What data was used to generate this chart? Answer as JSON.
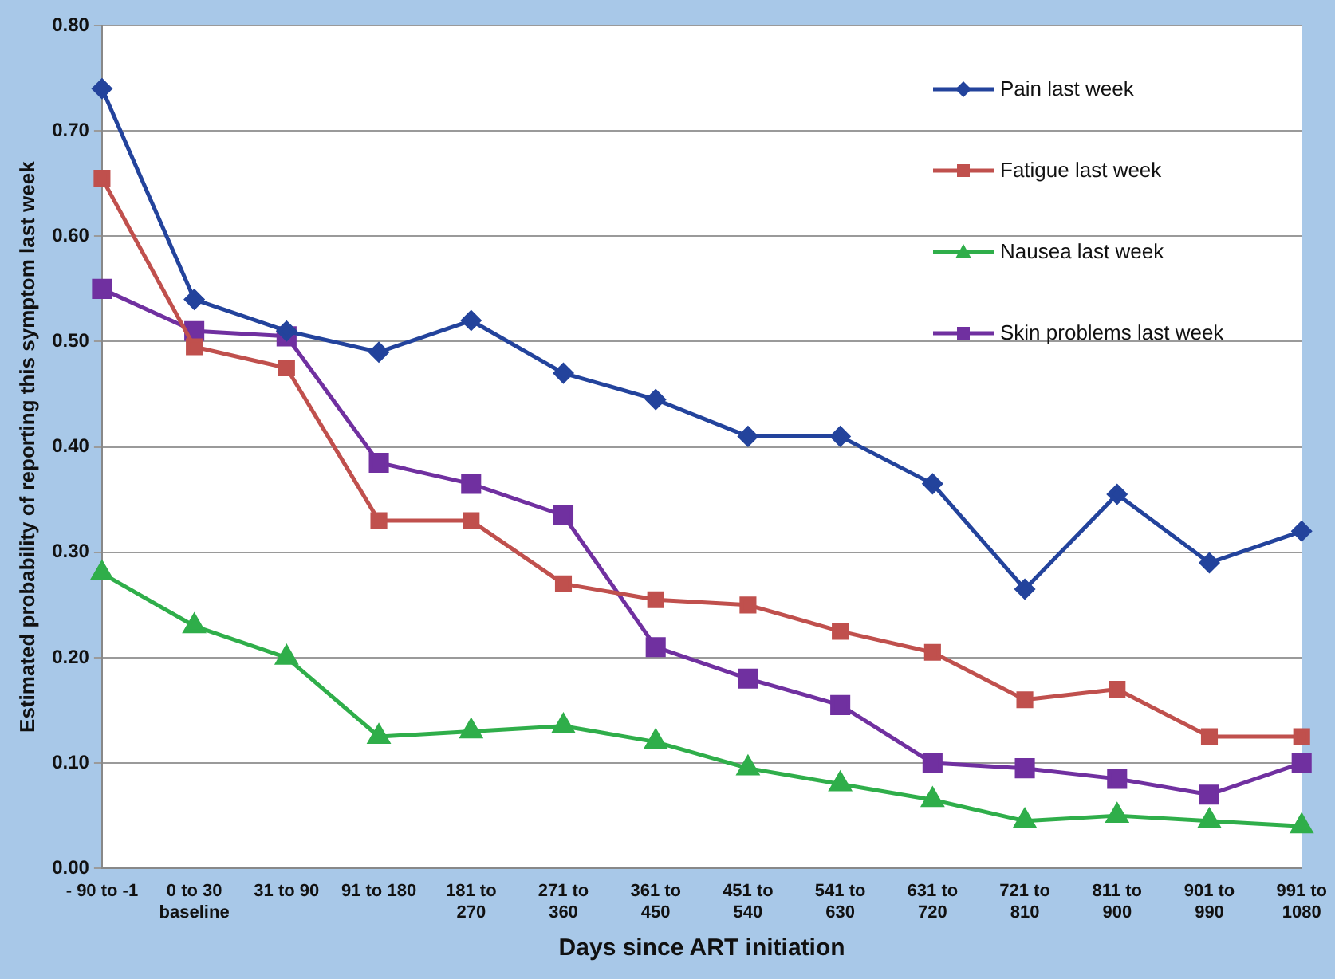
{
  "chart_data": {
    "type": "line",
    "xlabel": "Days since ART initiation",
    "ylabel": "Estimated probability of reporting this symptom last week",
    "categories": [
      "- 90 to -1",
      "0 to 30\nbaseline",
      "31 to 90",
      "91 to 180",
      "181 to\n270",
      "271 to\n360",
      "361 to\n450",
      "451 to\n540",
      "541 to\n630",
      "631 to\n720",
      "721 to\n810",
      "811 to\n900",
      "901 to\n990",
      "991 to\n1080"
    ],
    "series": [
      {
        "name": "Pain last week",
        "color": "#23439c",
        "marker": "diamond",
        "values": [
          0.74,
          0.54,
          0.51,
          0.49,
          0.52,
          0.47,
          0.445,
          0.41,
          0.41,
          0.365,
          0.265,
          0.355,
          0.29,
          0.32
        ]
      },
      {
        "name": "Fatigue last week",
        "color": "#c0504d",
        "marker": "square",
        "values": [
          0.655,
          0.495,
          0.475,
          0.33,
          0.33,
          0.27,
          0.255,
          0.25,
          0.225,
          0.205,
          0.16,
          0.17,
          0.125,
          0.125
        ]
      },
      {
        "name": "Nausea last week",
        "color": "#2fae4a",
        "marker": "triangle",
        "values": [
          0.28,
          0.23,
          0.2,
          0.125,
          0.13,
          0.135,
          0.12,
          0.095,
          0.08,
          0.065,
          0.045,
          0.05,
          0.045,
          0.04
        ]
      },
      {
        "name": "Skin problems last week",
        "color": "#7030a0",
        "marker": "square",
        "values": [
          0.55,
          0.51,
          0.505,
          0.385,
          0.365,
          0.335,
          0.21,
          0.18,
          0.155,
          0.1,
          0.095,
          0.085,
          0.07,
          0.1
        ]
      }
    ],
    "ylim": [
      0,
      0.8
    ],
    "yticks": [
      {
        "value": 0,
        "label": "0.00"
      },
      {
        "value": 0.1,
        "label": "0.10"
      },
      {
        "value": 0.2,
        "label": "0.20"
      },
      {
        "value": 0.3,
        "label": "0.30"
      },
      {
        "value": 0.4,
        "label": "0.40"
      },
      {
        "value": 0.5,
        "label": "0.50"
      },
      {
        "value": 0.6,
        "label": "0.60"
      },
      {
        "value": 0.7,
        "label": "0.70"
      },
      {
        "value": 0.8,
        "label": "0.80"
      }
    ],
    "grid": "y",
    "legend": "top right",
    "line_style": "solid"
  }
}
